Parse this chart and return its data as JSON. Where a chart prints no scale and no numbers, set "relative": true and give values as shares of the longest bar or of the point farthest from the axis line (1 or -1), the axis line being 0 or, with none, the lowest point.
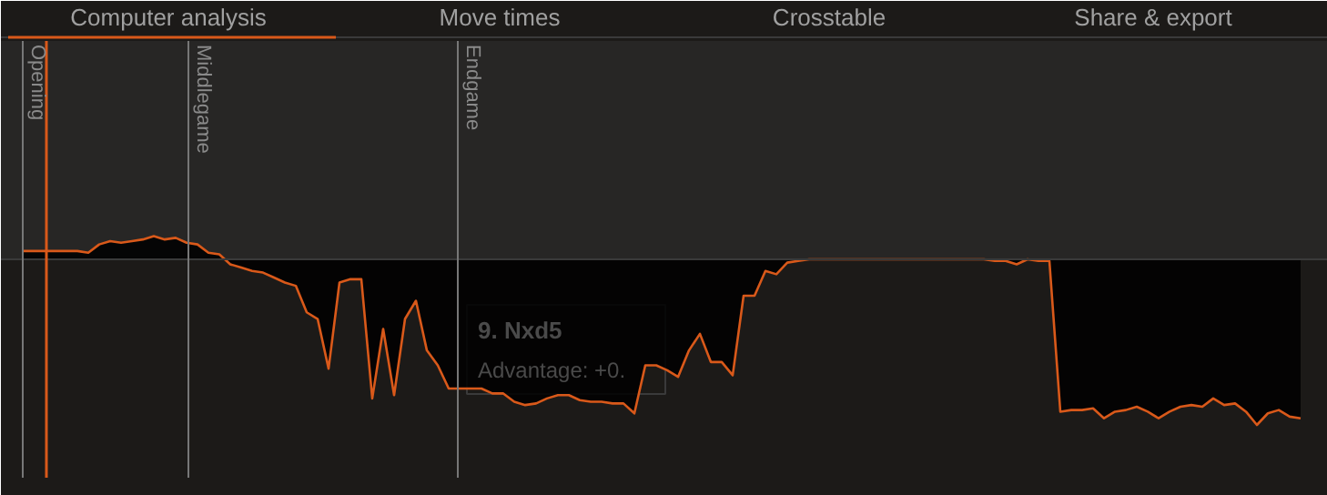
{
  "chart_data": {
    "type": "area",
    "relative": true,
    "categories": [
      null,
      null,
      null,
      null,
      null,
      null,
      null,
      null,
      null,
      null,
      null,
      null,
      null,
      null,
      null,
      null,
      null,
      null,
      null,
      null,
      null,
      null,
      null,
      null,
      null,
      null,
      null,
      null,
      null,
      null,
      null,
      null,
      null,
      null,
      null,
      null,
      null,
      null,
      null,
      null,
      null,
      null,
      null,
      null,
      null,
      null,
      null,
      null,
      null,
      null,
      null,
      null,
      null,
      null,
      null,
      null,
      null,
      null,
      null,
      null,
      null,
      null,
      null,
      null,
      null,
      null,
      null,
      null,
      null,
      null,
      null,
      null,
      null,
      null,
      null,
      null,
      null,
      null,
      null,
      null,
      null,
      null,
      null,
      null,
      null,
      null,
      null,
      null,
      null,
      null,
      null,
      null,
      null,
      null,
      null,
      null,
      null,
      null,
      null,
      null,
      null,
      null,
      null,
      null,
      null,
      null,
      null,
      null,
      null,
      null,
      null,
      null,
      null,
      null,
      null,
      null,
      null,
      null
    ],
    "series": [
      {
        "color": "#d9591a",
        "values": [
          0.05,
          0.05,
          0.05,
          0.05,
          0.05,
          0.05,
          0.04,
          0.09,
          0.11,
          0.1,
          0.11,
          0.12,
          0.14,
          0.12,
          0.13,
          0.1,
          0.09,
          0.04,
          0.03,
          -0.03,
          -0.05,
          -0.07,
          -0.08,
          -0.11,
          -0.14,
          -0.16,
          -0.32,
          -0.36,
          -0.66,
          -0.14,
          -0.12,
          -0.12,
          -0.84,
          -0.42,
          -0.82,
          -0.36,
          -0.25,
          -0.55,
          -0.64,
          -0.78,
          -0.78,
          -0.78,
          -0.78,
          -0.81,
          -0.81,
          -0.86,
          -0.88,
          -0.87,
          -0.84,
          -0.82,
          -0.82,
          -0.85,
          -0.86,
          -0.86,
          -0.87,
          -0.87,
          -0.93,
          -0.64,
          -0.64,
          -0.67,
          -0.71,
          -0.55,
          -0.45,
          -0.62,
          -0.62,
          -0.7,
          -0.22,
          -0.22,
          -0.07,
          -0.09,
          -0.02,
          -0.01,
          0,
          0,
          0,
          0,
          0,
          0,
          0,
          0,
          0,
          0,
          0,
          0,
          0,
          0,
          0,
          0,
          0,
          -0.01,
          -0.01,
          -0.03,
          0,
          -0.01,
          -0.01,
          -0.92,
          -0.91,
          -0.91,
          -0.9,
          -0.96,
          -0.92,
          -0.91,
          -0.89,
          -0.92,
          -0.96,
          -0.92,
          -0.89,
          -0.88,
          -0.89,
          -0.84,
          -0.88,
          -0.87,
          -0.92,
          -1.0,
          -0.93,
          -0.91,
          -0.95,
          -0.96
        ]
      }
    ],
    "annotations": [
      "Computer analysis",
      "Move times",
      "Crosstable",
      "Share & export",
      "Opening",
      "Middlegame",
      "Endgame",
      "9. Nxd5",
      "Advantage: +0."
    ]
  }
}
